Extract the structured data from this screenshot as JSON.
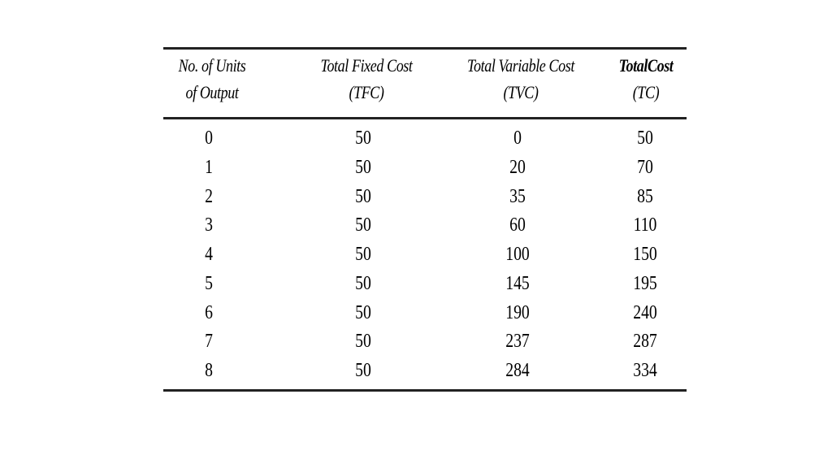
{
  "table": {
    "headers": {
      "units": [
        "No. of Units",
        "of Output"
      ],
      "tfc": [
        "Total Fixed Cost",
        "(TFC)"
      ],
      "tvc": [
        "Total Variable Cost",
        "(TVC)"
      ],
      "tc": [
        "TotalCost",
        "(TC)"
      ]
    },
    "rows": [
      {
        "units": "0",
        "tfc": "50",
        "tvc": "0",
        "tc": "50"
      },
      {
        "units": "1",
        "tfc": "50",
        "tvc": "20",
        "tc": "70"
      },
      {
        "units": "2",
        "tfc": "50",
        "tvc": "35",
        "tc": "85"
      },
      {
        "units": "3",
        "tfc": "50",
        "tvc": "60",
        "tc": "110"
      },
      {
        "units": "4",
        "tfc": "50",
        "tvc": "100",
        "tc": "150"
      },
      {
        "units": "5",
        "tfc": "50",
        "tvc": "145",
        "tc": "195"
      },
      {
        "units": "6",
        "tfc": "50",
        "tvc": "190",
        "tc": "240"
      },
      {
        "units": "7",
        "tfc": "50",
        "tvc": "237",
        "tc": "287"
      },
      {
        "units": "8",
        "tfc": "50",
        "tvc": "284",
        "tc": "334"
      }
    ]
  }
}
